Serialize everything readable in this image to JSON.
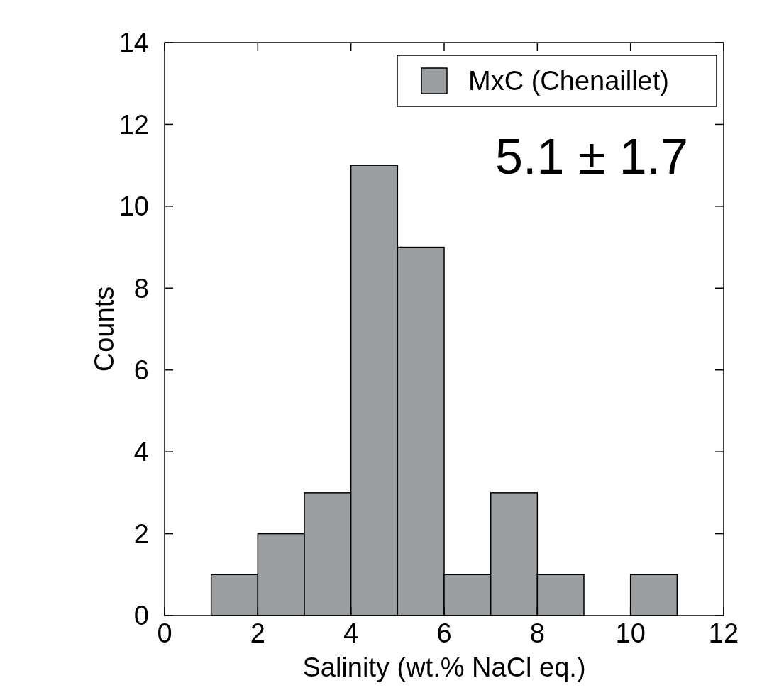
{
  "chart_data": {
    "type": "histogram",
    "xlabel": "Salinity (wt.% NaCl eq.)",
    "ylabel": "Counts",
    "bins": [
      1,
      2,
      3,
      4,
      5,
      6,
      7,
      8,
      9,
      10,
      11
    ],
    "series": [
      {
        "name": "MxC (Chenaillet)",
        "color": "#9c9fa2",
        "values": [
          1,
          2,
          3,
          11,
          9,
          1,
          3,
          1,
          0,
          1
        ]
      }
    ],
    "xlim": [
      0,
      12
    ],
    "xticks": [
      0,
      2,
      4,
      6,
      8,
      10,
      12
    ],
    "ylim": [
      0,
      14
    ],
    "yticks": [
      0,
      2,
      4,
      6,
      8,
      10,
      12,
      14
    ],
    "annotations": [
      "5.1 ± 1.7"
    ],
    "legend": "top right",
    "grid": false
  }
}
